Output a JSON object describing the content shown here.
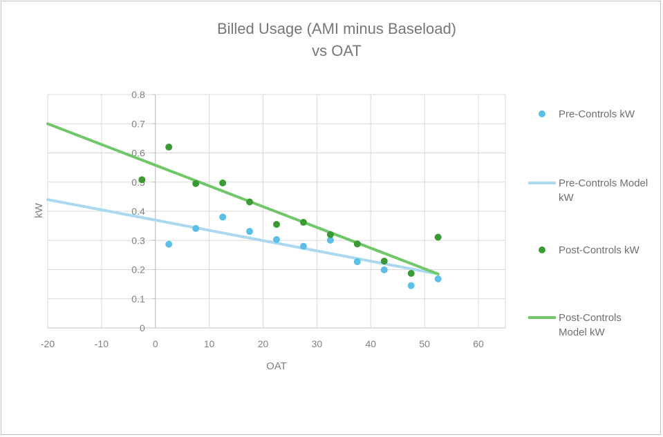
{
  "chart_data": {
    "type": "scatter",
    "title": "Billed Usage (AMI minus Baseload)",
    "subtitle": "vs OAT",
    "xlabel": "OAT",
    "ylabel": "kW",
    "xlim": [
      -20,
      65
    ],
    "ylim": [
      0,
      0.8
    ],
    "x_ticks": [
      -20,
      -10,
      0,
      10,
      20,
      30,
      40,
      50,
      60
    ],
    "y_ticks": [
      0,
      0.1,
      0.2,
      0.3,
      0.4,
      0.5,
      0.6,
      0.7,
      0.8
    ],
    "x_tick_labels": [
      "-20",
      "-10",
      "0",
      "10",
      "20",
      "30",
      "40",
      "50",
      "60"
    ],
    "y_tick_labels": [
      "0",
      "0.1",
      "0.2",
      "0.3",
      "0.4",
      "0.5",
      "0.6",
      "0.7",
      "0.8"
    ],
    "grid": true,
    "legend_position": "right",
    "series": [
      {
        "name": "Pre-Controls kW",
        "kind": "points",
        "color": "#5bbfe6",
        "points": [
          [
            2.5,
            0.287
          ],
          [
            7.5,
            0.341
          ],
          [
            12.5,
            0.38
          ],
          [
            17.5,
            0.331
          ],
          [
            22.5,
            0.303
          ],
          [
            27.5,
            0.28
          ],
          [
            32.5,
            0.301
          ],
          [
            37.5,
            0.227
          ],
          [
            42.5,
            0.199
          ],
          [
            47.5,
            0.145
          ],
          [
            52.5,
            0.168
          ]
        ]
      },
      {
        "name": "Pre-Controls Model kW",
        "legend_lines": [
          "Pre-Controls Model",
          "kW"
        ],
        "kind": "line",
        "color": "#a9d8ef",
        "points": [
          [
            -20,
            0.44
          ],
          [
            52.5,
            0.185
          ]
        ]
      },
      {
        "name": "Post-Controls kW",
        "kind": "points",
        "color": "#3c9a35",
        "points": [
          [
            -2.5,
            0.508
          ],
          [
            2.5,
            0.62
          ],
          [
            7.5,
            0.495
          ],
          [
            12.5,
            0.497
          ],
          [
            17.5,
            0.432
          ],
          [
            22.5,
            0.355
          ],
          [
            27.5,
            0.362
          ],
          [
            32.5,
            0.32
          ],
          [
            37.5,
            0.288
          ],
          [
            42.5,
            0.229
          ],
          [
            47.5,
            0.187
          ],
          [
            52.5,
            0.311
          ]
        ]
      },
      {
        "name": "Post-Controls Model kW",
        "legend_lines": [
          "Post-Controls",
          "Model kW"
        ],
        "kind": "line",
        "color": "#70c767",
        "points": [
          [
            -20,
            0.7
          ],
          [
            52.5,
            0.185
          ]
        ]
      }
    ]
  }
}
